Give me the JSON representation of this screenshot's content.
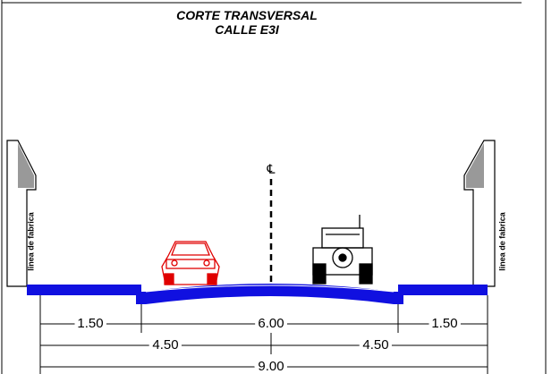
{
  "title": {
    "line1": "CORTE TRANSVERSAL",
    "line2": "CALLE E3I"
  },
  "labels": {
    "left_wall": "linea de fabrica",
    "right_wall": "linea de fabrica",
    "centerline": "℄"
  },
  "dimensions": {
    "row1": [
      "1.50",
      "6.00",
      "1.50"
    ],
    "row2": [
      "4.50",
      "4.50"
    ],
    "row3": [
      "9.00"
    ]
  }
}
